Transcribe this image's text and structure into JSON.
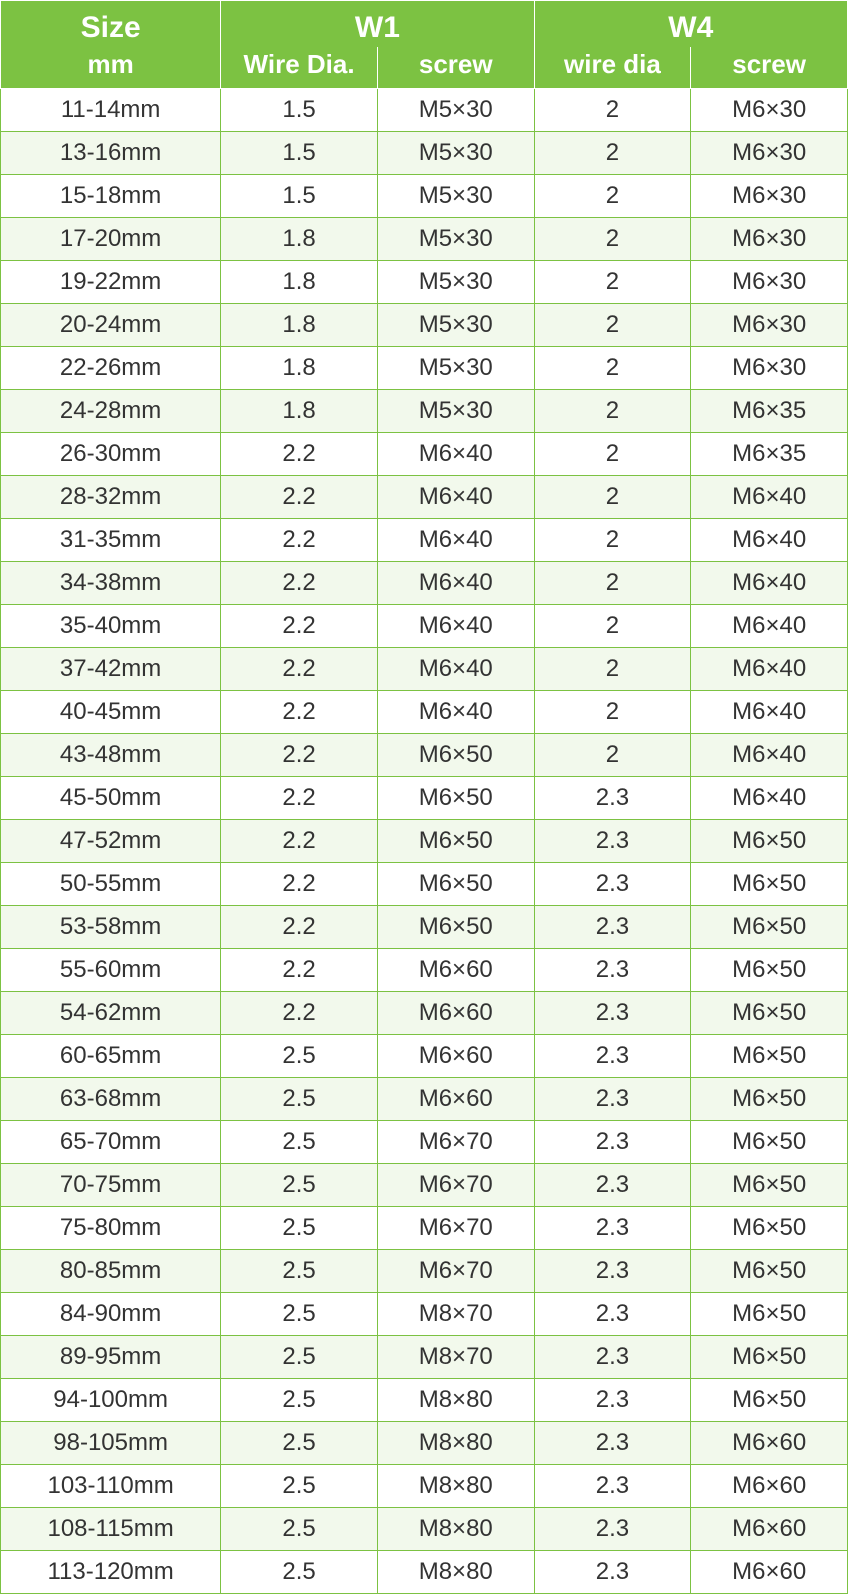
{
  "colors": {
    "header_bg": "#7cc242",
    "header_text": "#ffffff",
    "cell_border": "#7cc242",
    "header_border": "#ffffff",
    "row_odd_bg": "#ffffff",
    "row_even_bg": "#f2f9ec",
    "body_text": "#333333"
  },
  "typography": {
    "header_top_fontsize": 30,
    "header_sub_fontsize": 26,
    "body_fontsize": 24,
    "font_family": "Arial"
  },
  "table": {
    "type": "table",
    "column_widths_pct": [
      26,
      18.5,
      18.5,
      18.5,
      18.5
    ],
    "header": {
      "row1": {
        "size_top": "Size",
        "w1": "W1",
        "w4": "W4"
      },
      "row2": {
        "size_sub": "mm",
        "w1_wire": "Wire Dia.",
        "w1_screw": "screw",
        "w4_wire": "wire dia",
        "w4_screw": "screw"
      }
    },
    "rows": [
      {
        "size": "11-14mm",
        "w1_wire": "1.5",
        "w1_screw": "M5×30",
        "w4_wire": "2",
        "w4_screw": "M6×30"
      },
      {
        "size": "13-16mm",
        "w1_wire": "1.5",
        "w1_screw": "M5×30",
        "w4_wire": "2",
        "w4_screw": "M6×30"
      },
      {
        "size": "15-18mm",
        "w1_wire": "1.5",
        "w1_screw": "M5×30",
        "w4_wire": "2",
        "w4_screw": "M6×30"
      },
      {
        "size": "17-20mm",
        "w1_wire": "1.8",
        "w1_screw": "M5×30",
        "w4_wire": "2",
        "w4_screw": "M6×30"
      },
      {
        "size": "19-22mm",
        "w1_wire": "1.8",
        "w1_screw": "M5×30",
        "w4_wire": "2",
        "w4_screw": "M6×30"
      },
      {
        "size": "20-24mm",
        "w1_wire": "1.8",
        "w1_screw": "M5×30",
        "w4_wire": "2",
        "w4_screw": "M6×30"
      },
      {
        "size": "22-26mm",
        "w1_wire": "1.8",
        "w1_screw": "M5×30",
        "w4_wire": "2",
        "w4_screw": "M6×30"
      },
      {
        "size": "24-28mm",
        "w1_wire": "1.8",
        "w1_screw": "M5×30",
        "w4_wire": "2",
        "w4_screw": "M6×35"
      },
      {
        "size": "26-30mm",
        "w1_wire": "2.2",
        "w1_screw": "M6×40",
        "w4_wire": "2",
        "w4_screw": "M6×35"
      },
      {
        "size": "28-32mm",
        "w1_wire": "2.2",
        "w1_screw": "M6×40",
        "w4_wire": "2",
        "w4_screw": "M6×40"
      },
      {
        "size": "31-35mm",
        "w1_wire": "2.2",
        "w1_screw": "M6×40",
        "w4_wire": "2",
        "w4_screw": "M6×40"
      },
      {
        "size": "34-38mm",
        "w1_wire": "2.2",
        "w1_screw": "M6×40",
        "w4_wire": "2",
        "w4_screw": "M6×40"
      },
      {
        "size": "35-40mm",
        "w1_wire": "2.2",
        "w1_screw": "M6×40",
        "w4_wire": "2",
        "w4_screw": "M6×40"
      },
      {
        "size": "37-42mm",
        "w1_wire": "2.2",
        "w1_screw": "M6×40",
        "w4_wire": "2",
        "w4_screw": "M6×40"
      },
      {
        "size": "40-45mm",
        "w1_wire": "2.2",
        "w1_screw": "M6×40",
        "w4_wire": "2",
        "w4_screw": "M6×40"
      },
      {
        "size": "43-48mm",
        "w1_wire": "2.2",
        "w1_screw": "M6×50",
        "w4_wire": "2",
        "w4_screw": "M6×40"
      },
      {
        "size": "45-50mm",
        "w1_wire": "2.2",
        "w1_screw": "M6×50",
        "w4_wire": "2.3",
        "w4_screw": "M6×40"
      },
      {
        "size": "47-52mm",
        "w1_wire": "2.2",
        "w1_screw": "M6×50",
        "w4_wire": "2.3",
        "w4_screw": "M6×50"
      },
      {
        "size": "50-55mm",
        "w1_wire": "2.2",
        "w1_screw": "M6×50",
        "w4_wire": "2.3",
        "w4_screw": "M6×50"
      },
      {
        "size": "53-58mm",
        "w1_wire": "2.2",
        "w1_screw": "M6×50",
        "w4_wire": "2.3",
        "w4_screw": "M6×50"
      },
      {
        "size": "55-60mm",
        "w1_wire": "2.2",
        "w1_screw": "M6×60",
        "w4_wire": "2.3",
        "w4_screw": "M6×50"
      },
      {
        "size": "54-62mm",
        "w1_wire": "2.2",
        "w1_screw": "M6×60",
        "w4_wire": "2.3",
        "w4_screw": "M6×50"
      },
      {
        "size": "60-65mm",
        "w1_wire": "2.5",
        "w1_screw": "M6×60",
        "w4_wire": "2.3",
        "w4_screw": "M6×50"
      },
      {
        "size": "63-68mm",
        "w1_wire": "2.5",
        "w1_screw": "M6×60",
        "w4_wire": "2.3",
        "w4_screw": "M6×50"
      },
      {
        "size": "65-70mm",
        "w1_wire": "2.5",
        "w1_screw": "M6×70",
        "w4_wire": "2.3",
        "w4_screw": "M6×50"
      },
      {
        "size": "70-75mm",
        "w1_wire": "2.5",
        "w1_screw": "M6×70",
        "w4_wire": "2.3",
        "w4_screw": "M6×50"
      },
      {
        "size": "75-80mm",
        "w1_wire": "2.5",
        "w1_screw": "M6×70",
        "w4_wire": "2.3",
        "w4_screw": "M6×50"
      },
      {
        "size": "80-85mm",
        "w1_wire": "2.5",
        "w1_screw": "M6×70",
        "w4_wire": "2.3",
        "w4_screw": "M6×50"
      },
      {
        "size": "84-90mm",
        "w1_wire": "2.5",
        "w1_screw": "M8×70",
        "w4_wire": "2.3",
        "w4_screw": "M6×50"
      },
      {
        "size": "89-95mm",
        "w1_wire": "2.5",
        "w1_screw": "M8×70",
        "w4_wire": "2.3",
        "w4_screw": "M6×50"
      },
      {
        "size": "94-100mm",
        "w1_wire": "2.5",
        "w1_screw": "M8×80",
        "w4_wire": "2.3",
        "w4_screw": "M6×50"
      },
      {
        "size": "98-105mm",
        "w1_wire": "2.5",
        "w1_screw": "M8×80",
        "w4_wire": "2.3",
        "w4_screw": "M6×60"
      },
      {
        "size": "103-110mm",
        "w1_wire": "2.5",
        "w1_screw": "M8×80",
        "w4_wire": "2.3",
        "w4_screw": "M6×60"
      },
      {
        "size": "108-115mm",
        "w1_wire": "2.5",
        "w1_screw": "M8×80",
        "w4_wire": "2.3",
        "w4_screw": "M6×60"
      },
      {
        "size": "113-120mm",
        "w1_wire": "2.5",
        "w1_screw": "M8×80",
        "w4_wire": "2.3",
        "w4_screw": "M6×60"
      }
    ]
  }
}
